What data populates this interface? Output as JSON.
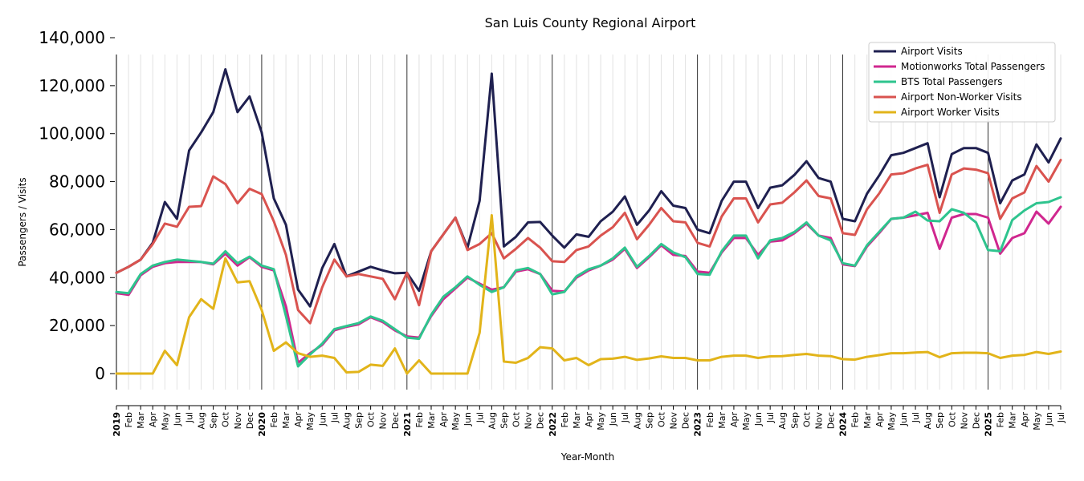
{
  "chart_data": {
    "type": "line",
    "title": "San Luis County Regional Airport",
    "xlabel": "Year-Month",
    "ylabel": "Passengers / Visits",
    "ylim": [
      -8000,
      140000
    ],
    "yticks": [
      0,
      20000,
      40000,
      60000,
      80000,
      100000,
      120000,
      140000
    ],
    "ytick_labels": [
      "0",
      "20,000",
      "40,000",
      "60,000",
      "80,000",
      "100,000",
      "120,000",
      "140,000"
    ],
    "legend_position": "top-right",
    "categories": [
      "2019",
      "Feb",
      "Mar",
      "Apr",
      "May",
      "Jun",
      "Jul",
      "Aug",
      "Sep",
      "Oct",
      "Nov",
      "Dec",
      "2020",
      "Feb",
      "Mar",
      "Apr",
      "May",
      "Jun",
      "Jul",
      "Aug",
      "Sep",
      "Oct",
      "Nov",
      "Dec",
      "2021",
      "Feb",
      "Mar",
      "Apr",
      "May",
      "Jun",
      "Jul",
      "Aug",
      "Sep",
      "Oct",
      "Nov",
      "Dec",
      "2022",
      "Feb",
      "Mar",
      "Apr",
      "May",
      "Jun",
      "Jul",
      "Aug",
      "Sep",
      "Oct",
      "Nov",
      "Dec",
      "2023",
      "Feb",
      "Mar",
      "Apr",
      "May",
      "Jun",
      "Jul",
      "Aug",
      "Sep",
      "Oct",
      "Nov",
      "Dec",
      "2024",
      "Feb",
      "Mar",
      "Apr",
      "May",
      "Jun",
      "Jul",
      "Aug",
      "Sep",
      "Oct",
      "Nov",
      "Dec",
      "2025",
      "Feb",
      "Mar",
      "Apr",
      "May",
      "Jun",
      "Jul"
    ],
    "series": [
      {
        "name": "Airport Visits",
        "color": "#1f2050",
        "values": [
          42000,
          44500,
          47500,
          54500,
          71500,
          64500,
          93000,
          100500,
          109000,
          126800,
          109000,
          115500,
          100500,
          73000,
          62000,
          35000,
          28000,
          44000,
          54000,
          40500,
          42500,
          44500,
          43000,
          41800,
          42000,
          34500,
          51000,
          58000,
          65000,
          52500,
          72000,
          125000,
          53000,
          57000,
          63000,
          63200,
          57500,
          52500,
          58000,
          57000,
          63500,
          67500,
          73800,
          62000,
          68000,
          76000,
          70000,
          69000,
          60000,
          58500,
          72000,
          80000,
          80000,
          69000,
          77500,
          78500,
          82800,
          88500,
          81500,
          80000,
          64500,
          63500,
          75000,
          82500,
          91000,
          92000,
          94000,
          96000,
          73500,
          91500,
          94000,
          94000,
          92000,
          71000,
          80500,
          83000,
          95500,
          88000,
          98000
        ]
      },
      {
        "name": "Motionworks Total Passengers",
        "color": "#d0278f",
        "values": [
          33500,
          32800,
          41000,
          44500,
          46000,
          46500,
          46500,
          46500,
          45500,
          50000,
          45000,
          48500,
          44500,
          43000,
          28000,
          4500,
          8500,
          12000,
          18000,
          19500,
          20500,
          23500,
          21500,
          18000,
          15500,
          15000,
          24000,
          31000,
          35500,
          40000,
          37500,
          35000,
          36000,
          42500,
          43500,
          41500,
          34500,
          34200,
          40000,
          43000,
          45000,
          47500,
          52000,
          44000,
          48500,
          53500,
          49500,
          49000,
          42500,
          42000,
          50500,
          56500,
          56500,
          49500,
          55000,
          55500,
          58500,
          62500,
          57500,
          56500,
          45500,
          44800,
          53000,
          58500,
          64500,
          65000,
          66000,
          67000,
          52000,
          65000,
          66500,
          66500,
          65000,
          50000,
          56500,
          58500,
          67500,
          62500,
          69500
        ]
      },
      {
        "name": "BTS Total Passengers",
        "color": "#2ec48e",
        "values": [
          34000,
          33500,
          41500,
          45000,
          46500,
          47500,
          47000,
          46500,
          45800,
          51000,
          46000,
          48700,
          45000,
          43500,
          24000,
          3000,
          8000,
          12500,
          18500,
          19800,
          21000,
          23800,
          22000,
          18500,
          15000,
          14500,
          24500,
          32000,
          36000,
          40500,
          37000,
          34000,
          36000,
          43000,
          44000,
          41500,
          33000,
          34000,
          40500,
          43500,
          45000,
          48000,
          52500,
          44500,
          49000,
          54000,
          50500,
          48500,
          41500,
          41200,
          51000,
          57500,
          57500,
          48000,
          55500,
          56500,
          59000,
          63000,
          57500,
          55500,
          46000,
          45000,
          53500,
          59000,
          64500,
          65000,
          67500,
          63800,
          63500,
          68500,
          67000,
          63000,
          51500,
          51000,
          64000,
          68000,
          71000,
          71500,
          73500
        ]
      },
      {
        "name": "Airport Non-Worker Visits",
        "color": "#d9534f",
        "values": [
          42000,
          44500,
          47500,
          54000,
          62500,
          61200,
          69500,
          69800,
          82200,
          79000,
          71000,
          77000,
          74800,
          63500,
          49500,
          26500,
          21000,
          36000,
          47500,
          40500,
          41500,
          40500,
          39500,
          31000,
          42000,
          28500,
          51000,
          58000,
          65000,
          51500,
          54000,
          58500,
          48000,
          52000,
          56500,
          52500,
          46800,
          46500,
          51500,
          53000,
          57500,
          61000,
          67000,
          56000,
          62000,
          69000,
          63500,
          63000,
          54500,
          53000,
          65500,
          73000,
          73000,
          63000,
          70500,
          71200,
          75500,
          80500,
          74000,
          73000,
          58500,
          57800,
          68500,
          75000,
          83000,
          83500,
          85500,
          87000,
          67000,
          83000,
          85500,
          85000,
          83500,
          64500,
          73000,
          75500,
          86500,
          80000,
          89000
        ]
      },
      {
        "name": "Airport Worker Visits",
        "color": "#e2b41a",
        "values": [
          0,
          0,
          0,
          0,
          9500,
          3500,
          23500,
          31000,
          27000,
          48000,
          38000,
          38500,
          26500,
          9500,
          13000,
          8500,
          7000,
          7500,
          6500,
          500,
          700,
          3700,
          3200,
          10500,
          0,
          5500,
          0,
          0,
          0,
          0,
          17000,
          66000,
          5000,
          4500,
          6500,
          11000,
          10500,
          5500,
          6500,
          3500,
          6000,
          6200,
          7000,
          5700,
          6300,
          7200,
          6500,
          6500,
          5500,
          5500,
          7000,
          7500,
          7500,
          6500,
          7200,
          7300,
          7800,
          8200,
          7500,
          7300,
          6000,
          5800,
          7000,
          7700,
          8500,
          8500,
          8800,
          9000,
          6800,
          8500,
          8700,
          8700,
          8500,
          6500,
          7500,
          7800,
          9000,
          8200,
          9200
        ]
      }
    ]
  }
}
